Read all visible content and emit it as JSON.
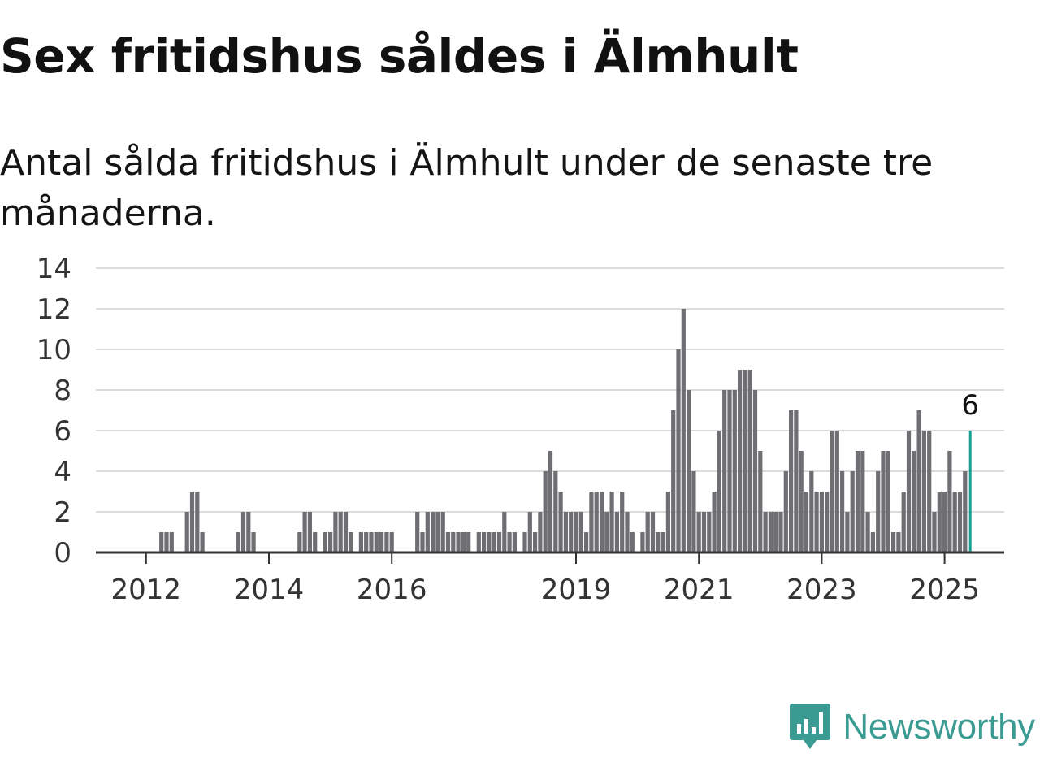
{
  "title": "Sex fritidshus såldes i Älmhult",
  "subtitle": "Antal sålda fritidshus i Älmhult under de senaste tre månaderna.",
  "brand": {
    "name": "Newsworthy",
    "color": "#3a9b93",
    "icon": "newsworthy-logo-icon"
  },
  "colors": {
    "bar": "#6e6e73",
    "highlight": "#1a9e92",
    "grid": "#dcdcdc",
    "axis": "#333333"
  },
  "chart_data": {
    "type": "bar",
    "xlabel": "",
    "ylabel": "",
    "ylim": [
      0,
      14
    ],
    "y_ticks": [
      "0",
      "2",
      "4",
      "6",
      "8",
      "10",
      "12",
      "14"
    ],
    "x_ticks": [
      "2012",
      "2014",
      "2016",
      "2019",
      "2021",
      "2023",
      "2025"
    ],
    "x_tick_month_index": [
      9,
      33,
      57,
      93,
      117,
      141,
      165
    ],
    "grid": true,
    "legend": "none",
    "first_month": "2011-01",
    "values": [
      0,
      0,
      0,
      0,
      0,
      0,
      0,
      0,
      0,
      0,
      0,
      0,
      1,
      1,
      1,
      0,
      0,
      2,
      3,
      3,
      1,
      0,
      0,
      0,
      0,
      0,
      0,
      1,
      2,
      2,
      1,
      0,
      0,
      0,
      0,
      0,
      0,
      0,
      0,
      1,
      2,
      2,
      1,
      0,
      1,
      1,
      2,
      2,
      2,
      1,
      0,
      1,
      1,
      1,
      1,
      1,
      1,
      1,
      0,
      0,
      0,
      0,
      2,
      1,
      2,
      2,
      2,
      2,
      1,
      1,
      1,
      1,
      1,
      0,
      1,
      1,
      1,
      1,
      1,
      2,
      1,
      1,
      0,
      1,
      2,
      1,
      2,
      4,
      5,
      4,
      3,
      2,
      2,
      2,
      2,
      1,
      3,
      3,
      3,
      2,
      3,
      2,
      3,
      2,
      1,
      0,
      1,
      2,
      2,
      1,
      1,
      3,
      7,
      10,
      12,
      8,
      4,
      2,
      2,
      2,
      3,
      6,
      8,
      8,
      8,
      9,
      9,
      9,
      8,
      5,
      2,
      2,
      2,
      2,
      4,
      7,
      7,
      5,
      3,
      4,
      3,
      3,
      3,
      6,
      6,
      4,
      2,
      4,
      5,
      5,
      2,
      1,
      4,
      5,
      5,
      1,
      1,
      3,
      6,
      5,
      7,
      6,
      6,
      2,
      3,
      3,
      5,
      3,
      3,
      4,
      6
    ],
    "highlight_last": true,
    "highlight_label": "6"
  }
}
